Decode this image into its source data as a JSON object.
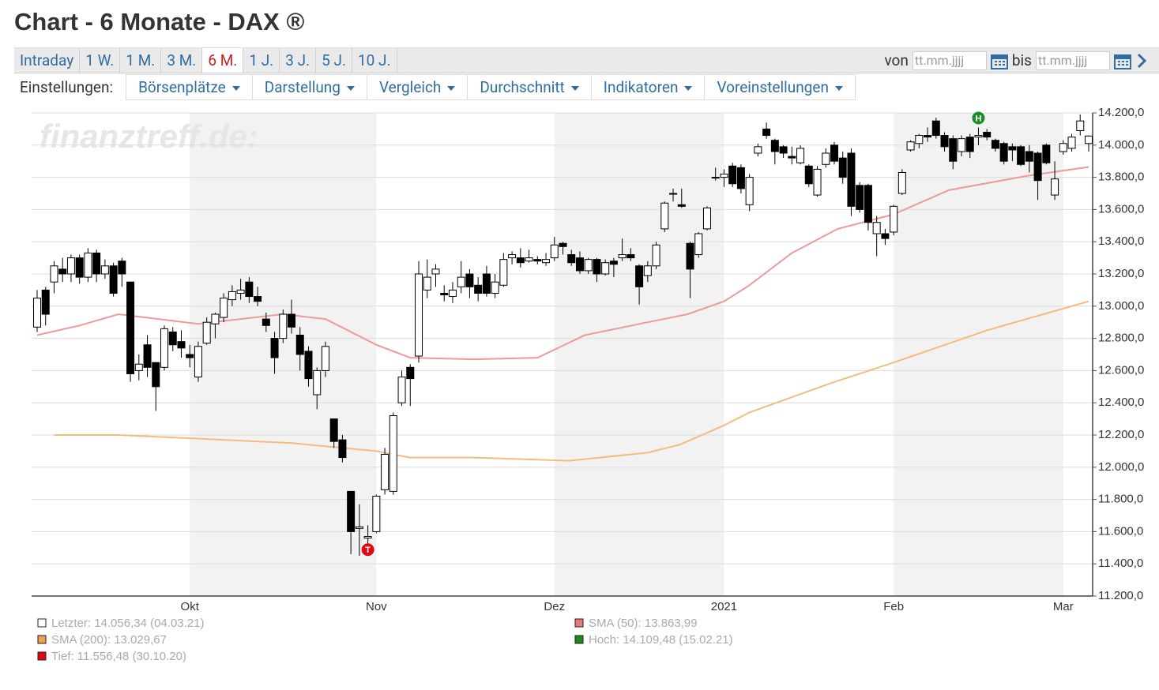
{
  "header": {
    "title": "Chart - 6 Monate - DAX ®"
  },
  "tabs": [
    "Intraday",
    "1 W.",
    "1 M.",
    "3 M.",
    "6 M.",
    "1 J.",
    "3 J.",
    "5 J.",
    "10 J."
  ],
  "active_tab": 4,
  "date_range": {
    "from_label": "von",
    "from_placeholder": "tt.mm.jjjj",
    "to_label": "bis",
    "to_placeholder": "tt.mm.jjjj"
  },
  "settings": {
    "label": "Einstellungen:",
    "menus": [
      "Börsenplätze",
      "Darstellung",
      "Vergleich",
      "Durchschnitt",
      "Indikatoren",
      "Voreinstellungen"
    ]
  },
  "watermark": "finanztreff.de:",
  "chart_data": {
    "type": "candlestick",
    "categories": [
      null,
      null,
      null,
      null,
      null,
      null,
      null,
      null,
      null,
      null,
      null,
      null,
      null,
      null,
      null,
      null,
      null,
      null,
      "Okt",
      null,
      null,
      null,
      null,
      null,
      null,
      null,
      null,
      null,
      null,
      null,
      null,
      null,
      null,
      null,
      null,
      null,
      null,
      null,
      null,
      null,
      "Nov",
      null,
      null,
      null,
      null,
      null,
      null,
      null,
      null,
      null,
      null,
      null,
      null,
      null,
      null,
      null,
      null,
      null,
      null,
      null,
      null,
      "Dez",
      null,
      null,
      null,
      null,
      null,
      null,
      null,
      null,
      null,
      null,
      null,
      null,
      null,
      null,
      null,
      null,
      null,
      null,
      null,
      "2021",
      null,
      null,
      null,
      null,
      null,
      null,
      null,
      null,
      null,
      null,
      null,
      null,
      null,
      null,
      null,
      null,
      null,
      null,
      null,
      "Feb",
      null,
      null,
      null,
      null,
      null,
      null,
      null,
      null,
      null,
      null,
      null,
      null,
      null,
      null,
      null,
      null,
      null,
      null,
      null,
      "Mar",
      null,
      null,
      null
    ],
    "ohlc": [
      [
        12870,
        13100,
        12840,
        13050
      ],
      [
        13100,
        13120,
        12880,
        12950
      ],
      [
        13150,
        13280,
        13080,
        13250
      ],
      [
        13230,
        13300,
        13150,
        13200
      ],
      [
        13200,
        13320,
        13150,
        13300
      ],
      [
        13300,
        13320,
        13140,
        13180
      ],
      [
        13180,
        13360,
        13150,
        13330
      ],
      [
        13330,
        13350,
        13150,
        13200
      ],
      [
        13200,
        13290,
        13170,
        13250
      ],
      [
        13250,
        13270,
        13060,
        13080
      ],
      [
        13280,
        13300,
        13120,
        13200
      ],
      [
        13150,
        13150,
        12530,
        12580
      ],
      [
        12600,
        12700,
        12540,
        12640
      ],
      [
        12760,
        12820,
        12560,
        12620
      ],
      [
        12650,
        12650,
        12350,
        12500
      ],
      [
        12620,
        12880,
        12600,
        12860
      ],
      [
        12840,
        12870,
        12720,
        12760
      ],
      [
        12780,
        12850,
        12680,
        12740
      ],
      [
        12700,
        12760,
        12620,
        12680
      ],
      [
        12560,
        12780,
        12530,
        12750
      ],
      [
        12770,
        12930,
        12760,
        12900
      ],
      [
        12890,
        12960,
        12800,
        12950
      ],
      [
        12930,
        13080,
        12900,
        13050
      ],
      [
        13040,
        13130,
        13000,
        13090
      ],
      [
        13080,
        13170,
        13040,
        13100
      ],
      [
        13150,
        13180,
        13020,
        13060
      ],
      [
        13060,
        13120,
        13000,
        13030
      ],
      [
        12920,
        12960,
        12840,
        12880
      ],
      [
        12800,
        12840,
        12580,
        12680
      ],
      [
        12800,
        12980,
        12770,
        12950
      ],
      [
        12950,
        13040,
        12830,
        12870
      ],
      [
        12820,
        12870,
        12600,
        12700
      ],
      [
        12720,
        12750,
        12500,
        12550
      ],
      [
        12450,
        12620,
        12360,
        12600
      ],
      [
        12600,
        12780,
        12560,
        12750
      ],
      [
        12300,
        12300,
        12120,
        12160
      ],
      [
        12170,
        12200,
        12030,
        12060
      ],
      [
        11850,
        11850,
        11460,
        11600
      ],
      [
        11620,
        11770,
        11450,
        11630
      ],
      [
        11560,
        11640,
        11450,
        11570
      ],
      [
        11600,
        11830,
        11590,
        11820
      ],
      [
        11860,
        12120,
        11830,
        12080
      ],
      [
        11850,
        12340,
        11830,
        12320
      ],
      [
        12400,
        12600,
        12380,
        12560
      ],
      [
        12620,
        12640,
        12380,
        12550
      ],
      [
        12690,
        13280,
        12650,
        13200
      ],
      [
        13100,
        13290,
        13050,
        13180
      ],
      [
        13200,
        13260,
        13120,
        13230
      ],
      [
        13080,
        13130,
        13030,
        13070
      ],
      [
        13060,
        13150,
        13020,
        13100
      ],
      [
        13120,
        13280,
        13080,
        13180
      ],
      [
        13200,
        13230,
        13050,
        13120
      ],
      [
        13130,
        13180,
        13030,
        13080
      ],
      [
        13200,
        13250,
        13060,
        13080
      ],
      [
        13080,
        13200,
        13050,
        13150
      ],
      [
        13130,
        13330,
        13120,
        13290
      ],
      [
        13300,
        13340,
        13260,
        13320
      ],
      [
        13300,
        13360,
        13240,
        13270
      ],
      [
        13280,
        13350,
        13270,
        13300
      ],
      [
        13290,
        13310,
        13260,
        13280
      ],
      [
        13270,
        13330,
        13250,
        13290
      ],
      [
        13300,
        13430,
        13280,
        13380
      ],
      [
        13390,
        13400,
        13320,
        13370
      ],
      [
        13320,
        13350,
        13250,
        13270
      ],
      [
        13300,
        13340,
        13200,
        13220
      ],
      [
        13220,
        13300,
        13200,
        13290
      ],
      [
        13290,
        13300,
        13150,
        13200
      ],
      [
        13200,
        13290,
        13190,
        13270
      ],
      [
        13280,
        13300,
        13180,
        13260
      ],
      [
        13300,
        13420,
        13280,
        13320
      ],
      [
        13320,
        13360,
        13280,
        13300
      ],
      [
        13250,
        13260,
        13010,
        13120
      ],
      [
        13190,
        13280,
        13150,
        13250
      ],
      [
        13250,
        13400,
        13230,
        13380
      ],
      [
        13480,
        13650,
        13460,
        13640
      ],
      [
        13700,
        13730,
        13650,
        13700
      ],
      [
        13630,
        13730,
        13610,
        13620
      ],
      [
        13390,
        13400,
        13050,
        13230
      ],
      [
        13320,
        13460,
        13300,
        13450
      ],
      [
        13480,
        13620,
        13470,
        13610
      ],
      [
        13800,
        13860,
        13780,
        13800
      ],
      [
        13800,
        13850,
        13740,
        13820
      ],
      [
        13870,
        13890,
        13740,
        13760
      ],
      [
        13860,
        13880,
        13700,
        13730
      ],
      [
        13630,
        13820,
        13590,
        13800
      ],
      [
        13950,
        14010,
        13930,
        13990
      ],
      [
        14100,
        14140,
        14040,
        14060
      ],
      [
        14030,
        14040,
        13880,
        13960
      ],
      [
        13990,
        14000,
        13920,
        13950
      ],
      [
        13930,
        13990,
        13880,
        13920
      ],
      [
        13890,
        14000,
        13880,
        13980
      ],
      [
        13870,
        13880,
        13740,
        13760
      ],
      [
        13690,
        13870,
        13680,
        13850
      ],
      [
        13880,
        13980,
        13860,
        13950
      ],
      [
        14000,
        14020,
        13880,
        13900
      ],
      [
        13920,
        13960,
        13760,
        13800
      ],
      [
        13950,
        13980,
        13560,
        13620
      ],
      [
        13750,
        13770,
        13580,
        13600
      ],
      [
        13750,
        13760,
        13470,
        13520
      ],
      [
        13450,
        13560,
        13310,
        13520
      ],
      [
        13450,
        13480,
        13380,
        13420
      ],
      [
        13460,
        13630,
        13440,
        13620
      ],
      [
        13700,
        13850,
        13690,
        13830
      ],
      [
        13970,
        14030,
        13960,
        14020
      ],
      [
        14010,
        14070,
        13980,
        14060
      ],
      [
        14060,
        14110,
        14020,
        14050
      ],
      [
        14150,
        14170,
        14040,
        14060
      ],
      [
        14060,
        14080,
        13960,
        13990
      ],
      [
        14040,
        14060,
        13850,
        13900
      ],
      [
        13960,
        14060,
        13930,
        14040
      ],
      [
        14050,
        14070,
        13920,
        13960
      ],
      [
        14050,
        14110,
        14000,
        14060
      ],
      [
        14080,
        14100,
        14030,
        14050
      ],
      [
        14030,
        14040,
        13960,
        13980
      ],
      [
        14010,
        14020,
        13880,
        13900
      ],
      [
        13990,
        14010,
        13900,
        13970
      ],
      [
        13990,
        14000,
        13870,
        13880
      ],
      [
        13960,
        14000,
        13830,
        13900
      ],
      [
        13950,
        13960,
        13660,
        13780
      ],
      [
        14000,
        14010,
        13880,
        13890
      ],
      [
        13690,
        13900,
        13660,
        13790
      ],
      [
        13960,
        14030,
        13940,
        14010
      ],
      [
        13980,
        14070,
        13960,
        14050
      ],
      [
        14090,
        14190,
        14060,
        14150
      ],
      [
        14010,
        14060,
        13960,
        14056.34
      ]
    ],
    "up_color": "#ffffff",
    "down_color": "#000000",
    "series": [
      {
        "name": "SMA (50)",
        "color": "#ec9a9a",
        "x": [
          0,
          5,
          9.6,
          19,
          29,
          34,
          40,
          44,
          51.5,
          59,
          64.6,
          72,
          76.7,
          81,
          84,
          89,
          94.4,
          101,
          107.5,
          116.8,
          124
        ],
        "values": [
          12820,
          12880,
          12950,
          12890,
          12950,
          12920,
          12760,
          12680,
          12670,
          12680,
          12820,
          12900,
          12950,
          13030,
          13130,
          13330,
          13480,
          13570,
          13720,
          13810,
          13864
        ]
      },
      {
        "name": "SMA (200)",
        "color": "#f4bb80",
        "x": [
          2,
          9.6,
          18,
          30,
          40,
          44,
          51.5,
          62.7,
          72,
          75.8,
          81,
          84,
          93.5,
          101,
          112,
          124
        ],
        "values": [
          12200,
          12200,
          12180,
          12150,
          12100,
          12060,
          12060,
          12040,
          12090,
          12140,
          12260,
          12340,
          12520,
          12650,
          12850,
          13030
        ]
      }
    ],
    "markers": [
      {
        "label": "T",
        "index": 39,
        "value": 11556.48,
        "color": "#e30613"
      },
      {
        "label": "H",
        "index": 111,
        "value": 14109.48,
        "color": "#1e8c2a"
      }
    ],
    "ylim": [
      11200,
      14200
    ],
    "yticks": [
      {
        "value": 11200,
        "label": "11.200,0"
      },
      {
        "value": 11400,
        "label": "11.400,0"
      },
      {
        "value": 11600,
        "label": "11.600,0"
      },
      {
        "value": 11800,
        "label": "11.800,0"
      },
      {
        "value": 12000,
        "label": "12.000,0"
      },
      {
        "value": 12200,
        "label": "12.200,0"
      },
      {
        "value": 12400,
        "label": "12.400,0"
      },
      {
        "value": 12600,
        "label": "12.600,0"
      },
      {
        "value": 12800,
        "label": "12.800,0"
      },
      {
        "value": 13000,
        "label": "13.000,0"
      },
      {
        "value": 13200,
        "label": "13.200,0"
      },
      {
        "value": 13400,
        "label": "13.400,0"
      },
      {
        "value": 13600,
        "label": "13.600,0"
      },
      {
        "value": 13800,
        "label": "13.800,0"
      },
      {
        "value": 14000,
        "label": "14.000,0"
      },
      {
        "value": 14200,
        "label": "14.200,0"
      }
    ],
    "grid": true,
    "legend": [
      {
        "text": "Letzter: 14.056,34 (04.03.21)",
        "color": "#ffffff"
      },
      {
        "text": "SMA (200): 13.029,67",
        "color": "#f0a050"
      },
      {
        "text": "Tief: 11.556,48 (30.10.20)",
        "color": "#e30613"
      },
      {
        "text": "SMA (50): 13.863,99",
        "color": "#e77b7b"
      },
      {
        "text": "Hoch: 14.109,48 (15.02.21)",
        "color": "#1a8a1a"
      }
    ]
  }
}
